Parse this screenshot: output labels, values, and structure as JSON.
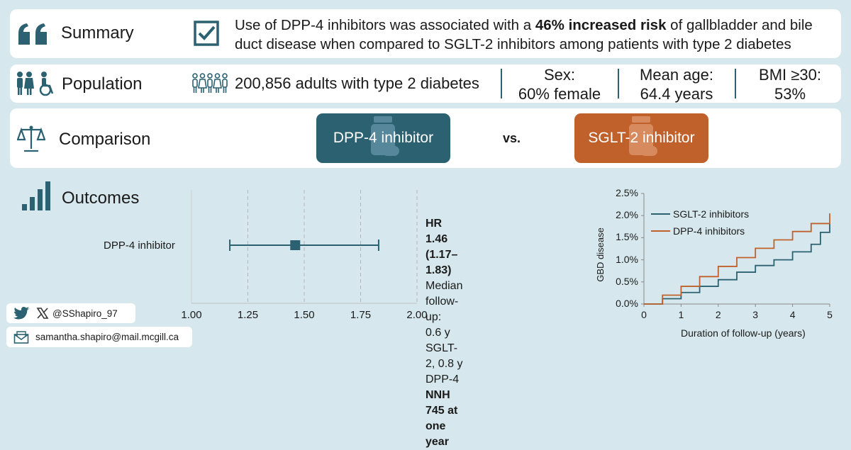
{
  "summary": {
    "label": "Summary",
    "text_before": "Use of DPP-4 inhibitors was associated with a ",
    "text_bold": "46% increased risk",
    "text_after": " of gallbladder and bile duct disease when compared to SGLT-2 inhibitors among patients with type 2 diabetes",
    "icon": "quote-icon"
  },
  "population": {
    "label": "Population",
    "count_text": "200,856 adults with type 2 diabetes",
    "stats": [
      {
        "line1": "Sex:",
        "line2": "60% female"
      },
      {
        "line1": "Mean age:",
        "line2": "64.4 years"
      },
      {
        "line1": "BMI ≥30:",
        "line2": "53%"
      }
    ]
  },
  "comparison": {
    "label": "Comparison",
    "drug_a": "DPP-4 inhibitor",
    "vs": "vs.",
    "drug_b": "SGLT-2 inhibitor",
    "colors": {
      "drug_a": "#2b6171",
      "drug_b": "#c0612c"
    }
  },
  "outcomes": {
    "label": "Outcomes",
    "forest": {
      "row_label": "DPP-4 inhibitor",
      "hr_text": "HR 1.46 (1.17–1.83)",
      "follow_label": "Median follow-up:",
      "follow_value": "0.6 y SGLT-2, 0.8 y DPP-4",
      "nnh_text": "NNH 745 at one year"
    }
  },
  "chart_data": [
    {
      "type": "scatter",
      "title": "",
      "xlabel": "",
      "ylabel": "",
      "xlim": [
        1.0,
        2.0
      ],
      "x_ticks": [
        "1.00",
        "1.25",
        "1.50",
        "1.75",
        "2.00"
      ],
      "categories": [
        "DPP-4 inhibitor"
      ],
      "estimate": 1.46,
      "ci_low": 1.17,
      "ci_high": 1.83,
      "grid": true
    },
    {
      "type": "line",
      "title": "",
      "xlabel": "Duration of follow-up (years)",
      "ylabel": "GBD disease",
      "xlim": [
        0,
        5
      ],
      "ylim": [
        0,
        2.5
      ],
      "x_ticks": [
        "0",
        "1",
        "2",
        "3",
        "4",
        "5"
      ],
      "y_ticks": [
        "0.0%",
        "0.5%",
        "1.0%",
        "1.5%",
        "2.0%",
        "2.5%"
      ],
      "legend": "top-left",
      "series": [
        {
          "name": "SGLT-2 inhibitors",
          "color": "#2b6171",
          "x": [
            0,
            0.5,
            1,
            1.5,
            2,
            2.5,
            3,
            3.5,
            4,
            4.5,
            4.75,
            5
          ],
          "y": [
            0,
            0.12,
            0.26,
            0.4,
            0.55,
            0.72,
            0.87,
            1.0,
            1.18,
            1.35,
            1.62,
            1.83
          ]
        },
        {
          "name": "DPP-4 inhibitors",
          "color": "#c0612c",
          "x": [
            0,
            0.5,
            1,
            1.5,
            2,
            2.5,
            3,
            3.5,
            4,
            4.5,
            5
          ],
          "y": [
            0,
            0.2,
            0.4,
            0.62,
            0.85,
            1.05,
            1.26,
            1.45,
            1.64,
            1.82,
            2.05
          ]
        }
      ]
    }
  ],
  "footer": {
    "handle": "@SShapiro_97",
    "email": "samantha.shapiro@mail.mcgill.ca"
  }
}
